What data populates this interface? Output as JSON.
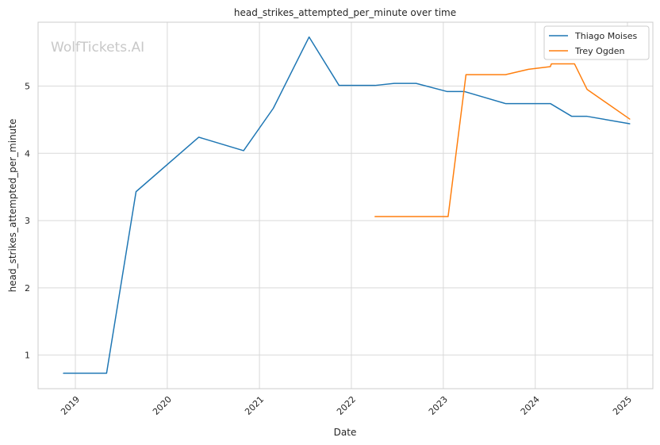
{
  "chart_data": {
    "type": "line",
    "title": "head_strikes_attempted_per_minute over time",
    "xlabel": "Date",
    "ylabel": "head_strikes_attempted_per_minute",
    "watermark": "WolfTickets.AI",
    "grid": true,
    "legend_position": "top-right",
    "x_ticks": [
      "2019",
      "2020",
      "2021",
      "2022",
      "2023",
      "2024",
      "2025"
    ],
    "y_ticks": [
      "1",
      "2",
      "3",
      "4",
      "5"
    ],
    "xlim": [
      "2018-08-06",
      "2025-04-12"
    ],
    "ylim": [
      0.5,
      5.95
    ],
    "series": [
      {
        "name": "Thiago Moises",
        "color": "#1f77b4",
        "points": [
          {
            "x": "2018-11-15",
            "y": 0.73
          },
          {
            "x": "2019-05-05",
            "y": 0.73
          },
          {
            "x": "2019-08-30",
            "y": 3.43
          },
          {
            "x": "2020-05-05",
            "y": 4.24
          },
          {
            "x": "2020-10-30",
            "y": 4.04
          },
          {
            "x": "2021-02-25",
            "y": 4.67
          },
          {
            "x": "2021-07-17",
            "y": 5.73
          },
          {
            "x": "2021-11-13",
            "y": 5.01
          },
          {
            "x": "2022-04-05",
            "y": 5.01
          },
          {
            "x": "2022-06-20",
            "y": 5.04
          },
          {
            "x": "2022-09-15",
            "y": 5.04
          },
          {
            "x": "2023-01-15",
            "y": 4.92
          },
          {
            "x": "2023-03-25",
            "y": 4.92
          },
          {
            "x": "2023-09-05",
            "y": 4.74
          },
          {
            "x": "2024-03-01",
            "y": 4.74
          },
          {
            "x": "2024-05-25",
            "y": 4.55
          },
          {
            "x": "2024-07-25",
            "y": 4.55
          },
          {
            "x": "2025-01-10",
            "y": 4.44
          }
        ]
      },
      {
        "name": "Trey Ogden",
        "color": "#ff7f0e",
        "points": [
          {
            "x": "2022-04-05",
            "y": 3.06
          },
          {
            "x": "2023-01-20",
            "y": 3.06
          },
          {
            "x": "2023-04-01",
            "y": 5.17
          },
          {
            "x": "2023-09-05",
            "y": 5.17
          },
          {
            "x": "2023-12-05",
            "y": 5.25
          },
          {
            "x": "2024-03-01",
            "y": 5.29
          },
          {
            "x": "2024-03-05",
            "y": 5.33
          },
          {
            "x": "2024-06-05",
            "y": 5.33
          },
          {
            "x": "2024-07-25",
            "y": 4.95
          },
          {
            "x": "2025-01-10",
            "y": 4.51
          }
        ]
      }
    ]
  }
}
